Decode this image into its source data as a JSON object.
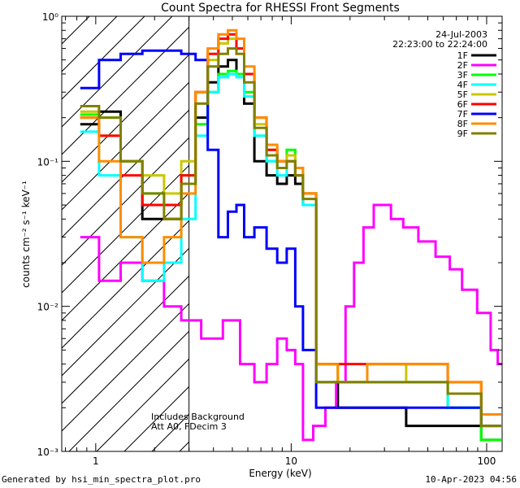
{
  "chart_data": {
    "type": "line",
    "title": "Count Spectra for RHESSI Front Segments",
    "xlabel": "Energy (keV)",
    "ylabel": "counts cm⁻² s⁻¹ keV⁻¹",
    "x_scale": "log",
    "y_scale": "log",
    "xlim": [
      0.67,
      120
    ],
    "ylim": [
      0.001,
      1.0
    ],
    "x_ticks": [
      {
        "value": 1,
        "label": "1"
      },
      {
        "value": 10,
        "label": "10"
      },
      {
        "value": 100,
        "label": "100"
      }
    ],
    "y_ticks": [
      {
        "value": 1,
        "label": "10⁰"
      },
      {
        "value": 0.1,
        "label": "10⁻¹"
      },
      {
        "value": 0.01,
        "label": "10⁻²"
      },
      {
        "value": 0.001,
        "label": "10⁻³"
      }
    ],
    "date": "24-Jul-2003",
    "time_range": "22:23:00 to 22:24:00",
    "legend_position": "top-right",
    "annotations": [
      "Includes Background",
      "Att A0, FDecim 3"
    ],
    "hatched_region_keV": [
      0.67,
      3.0
    ],
    "series": [
      {
        "name": "1F",
        "color": "#000000",
        "x": [
          0.9,
          1.2,
          1.5,
          2,
          2.5,
          3,
          3.5,
          4,
          4.5,
          5,
          5.5,
          6,
          7,
          8,
          9,
          10,
          11,
          12,
          15,
          20,
          30,
          50,
          80,
          110
        ],
        "y": [
          0.18,
          0.22,
          0.1,
          0.04,
          0.04,
          0.07,
          0.2,
          0.35,
          0.45,
          0.5,
          0.4,
          0.25,
          0.1,
          0.08,
          0.07,
          0.08,
          0.07,
          0.05,
          0.003,
          0.002,
          0.002,
          0.0015,
          0.0015,
          0.0012
        ]
      },
      {
        "name": "2F",
        "color": "#ff00ff",
        "x": [
          0.9,
          1.2,
          1.5,
          2,
          2.5,
          3,
          4,
          5,
          6,
          7,
          8,
          9,
          10,
          11,
          12,
          14,
          16,
          18,
          20,
          22,
          25,
          28,
          30,
          35,
          40,
          50,
          60,
          70,
          80,
          100,
          110,
          118
        ],
        "y": [
          0.03,
          0.015,
          0.02,
          0.015,
          0.01,
          0.008,
          0.006,
          0.008,
          0.004,
          0.003,
          0.004,
          0.006,
          0.005,
          0.004,
          0.0012,
          0.0015,
          0.002,
          0.003,
          0.01,
          0.02,
          0.035,
          0.05,
          0.05,
          0.04,
          0.035,
          0.028,
          0.022,
          0.018,
          0.013,
          0.009,
          0.005,
          0.004
        ]
      },
      {
        "name": "3F",
        "color": "#00ff00",
        "x": [
          0.9,
          1.2,
          1.5,
          2,
          2.5,
          3,
          3.5,
          4,
          4.5,
          5,
          5.5,
          6,
          7,
          8,
          9,
          10,
          11,
          12,
          15,
          20,
          30,
          50,
          80,
          110
        ],
        "y": [
          0.21,
          0.2,
          0.1,
          0.06,
          0.05,
          0.08,
          0.18,
          0.3,
          0.4,
          0.42,
          0.4,
          0.3,
          0.15,
          0.1,
          0.09,
          0.12,
          0.09,
          0.06,
          0.004,
          0.003,
          0.003,
          0.003,
          0.002,
          0.0012
        ]
      },
      {
        "name": "4F",
        "color": "#00ffff",
        "x": [
          0.9,
          1.2,
          1.5,
          2,
          2.5,
          3,
          3.5,
          4,
          4.5,
          5,
          5.5,
          6,
          7,
          8,
          9,
          10,
          11,
          12,
          15,
          20,
          30,
          50,
          80,
          110
        ],
        "y": [
          0.16,
          0.08,
          0.03,
          0.015,
          0.02,
          0.04,
          0.15,
          0.3,
          0.38,
          0.4,
          0.38,
          0.28,
          0.15,
          0.1,
          0.08,
          0.1,
          0.08,
          0.05,
          0.003,
          0.003,
          0.003,
          0.003,
          0.002,
          0.0015
        ]
      },
      {
        "name": "5F",
        "color": "#c8c800",
        "x": [
          0.9,
          1.2,
          1.5,
          2,
          2.5,
          3,
          3.5,
          4,
          4.5,
          5,
          5.5,
          6,
          7,
          8,
          9,
          10,
          11,
          12,
          15,
          20,
          30,
          50,
          80,
          110
        ],
        "y": [
          0.22,
          0.15,
          0.1,
          0.08,
          0.06,
          0.1,
          0.3,
          0.5,
          0.65,
          0.7,
          0.6,
          0.4,
          0.18,
          0.12,
          0.1,
          0.11,
          0.08,
          0.06,
          0.004,
          0.003,
          0.004,
          0.003,
          0.0025,
          0.0015
        ]
      },
      {
        "name": "6F",
        "color": "#ff0000",
        "x": [
          0.9,
          1.2,
          1.5,
          2,
          2.5,
          3,
          3.5,
          4,
          4.5,
          5,
          5.5,
          6,
          7,
          8,
          9,
          10,
          11,
          12,
          15,
          20,
          30,
          50,
          80,
          110
        ],
        "y": [
          0.2,
          0.15,
          0.08,
          0.05,
          0.05,
          0.08,
          0.3,
          0.55,
          0.7,
          0.75,
          0.6,
          0.4,
          0.2,
          0.12,
          0.1,
          0.1,
          0.08,
          0.06,
          0.004,
          0.004,
          0.004,
          0.004,
          0.003,
          0.0018
        ]
      },
      {
        "name": "7F",
        "color": "#0000ff",
        "x": [
          0.9,
          1.2,
          1.5,
          2,
          2.5,
          3,
          3.5,
          4,
          4.5,
          5,
          5.5,
          6,
          7,
          8,
          9,
          10,
          11,
          12,
          15,
          20,
          30,
          50,
          80,
          110
        ],
        "y": [
          0.32,
          0.5,
          0.55,
          0.58,
          0.58,
          0.55,
          0.5,
          0.12,
          0.03,
          0.045,
          0.05,
          0.03,
          0.035,
          0.025,
          0.02,
          0.025,
          0.01,
          0.005,
          0.002,
          0.002,
          0.002,
          0.002,
          0.002,
          0.0015
        ]
      },
      {
        "name": "8F",
        "color": "#ff8c00",
        "x": [
          0.9,
          1.2,
          1.5,
          2,
          2.5,
          3,
          3.5,
          4,
          4.5,
          5,
          5.5,
          6,
          7,
          8,
          9,
          10,
          11,
          12,
          15,
          20,
          30,
          50,
          80,
          110
        ],
        "y": [
          0.2,
          0.1,
          0.03,
          0.02,
          0.03,
          0.06,
          0.3,
          0.6,
          0.75,
          0.8,
          0.7,
          0.45,
          0.2,
          0.13,
          0.1,
          0.1,
          0.09,
          0.06,
          0.004,
          0.003,
          0.004,
          0.004,
          0.003,
          0.0018
        ]
      },
      {
        "name": "9F",
        "color": "#808000",
        "x": [
          0.9,
          1.2,
          1.5,
          2,
          2.5,
          3,
          3.5,
          4,
          4.5,
          5,
          5.5,
          6,
          7,
          8,
          9,
          10,
          11,
          12,
          15,
          20,
          30,
          50,
          80,
          110
        ],
        "y": [
          0.24,
          0.2,
          0.1,
          0.06,
          0.04,
          0.07,
          0.25,
          0.45,
          0.55,
          0.6,
          0.55,
          0.35,
          0.17,
          0.11,
          0.09,
          0.1,
          0.08,
          0.055,
          0.003,
          0.003,
          0.003,
          0.003,
          0.0025,
          0.0015
        ]
      }
    ]
  },
  "footer": {
    "generated_by": "Generated by hsi_min_spectra_plot.pro",
    "timestamp": "10-Apr-2023 04:56"
  }
}
